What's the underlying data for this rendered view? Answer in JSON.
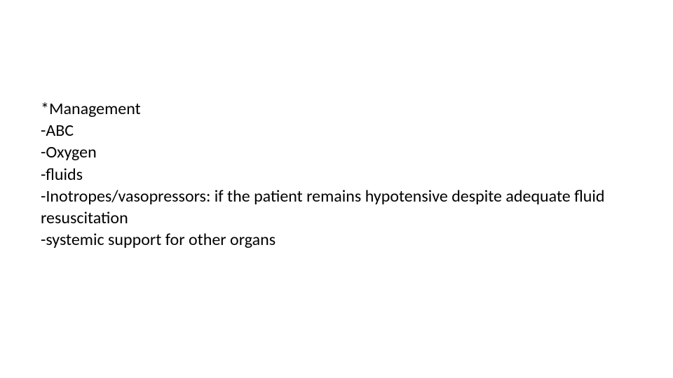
{
  "slide": {
    "background_color": "#ffffff",
    "text_color": "#000000",
    "font_size": 24,
    "font_family": "Calibri",
    "lines": [
      "*Management",
      "-ABC",
      "-Oxygen",
      "-fluids",
      "-Inotropes/vasopressors: if the patient remains hypotensive despite adequate fluid resuscitation",
      "-systemic support for other organs"
    ]
  }
}
